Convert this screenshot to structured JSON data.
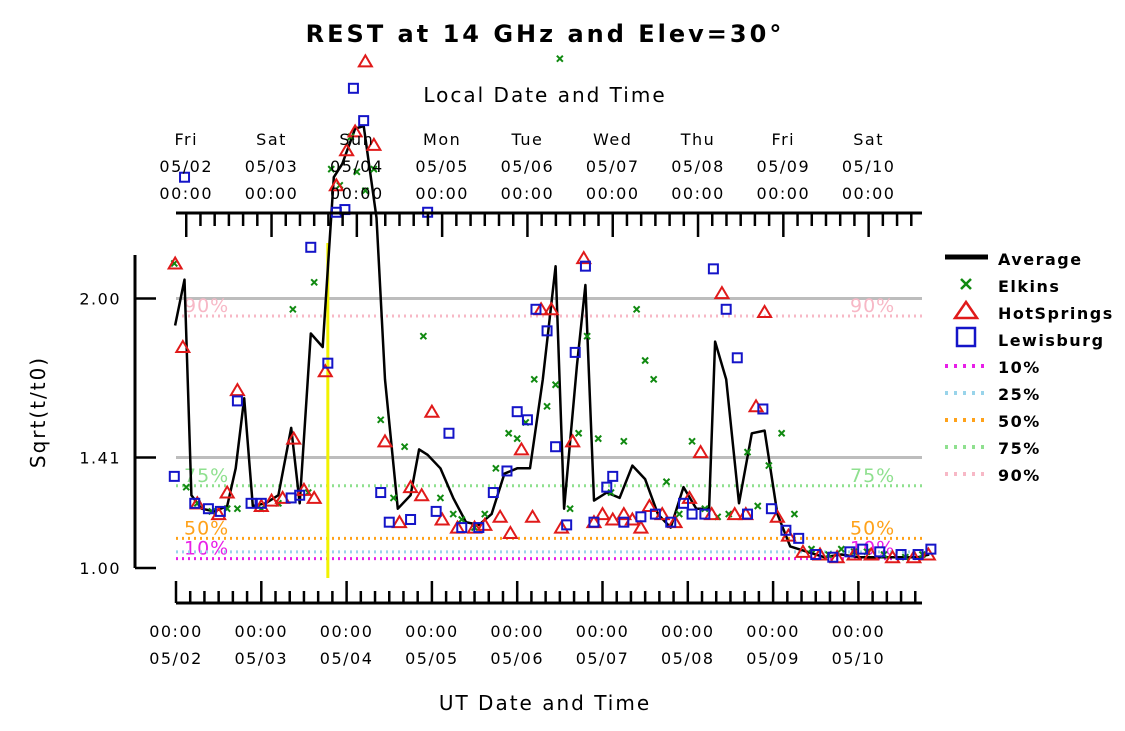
{
  "chart_data": {
    "type": "scatter",
    "title": "REST at 14 GHz and Elev=30°",
    "top_axis_title": "Local Date and Time",
    "xlabel": "UT Date and Time",
    "ylabel": "Sqrt(t/t0)",
    "xlim": [
      "05/01 23:10",
      "05/10 21:20"
    ],
    "ylim": [
      0.99,
      2.99
    ],
    "grid": "horizontal lines at 1.41 and 2.00",
    "legend_position": "right",
    "y_ticks": [
      {
        "value": 1.0,
        "label": "1.00"
      },
      {
        "value": 1.41,
        "label": "1.41"
      },
      {
        "value": 2.0,
        "label": "2.00"
      }
    ],
    "bottom_ticks": [
      {
        "day": 0,
        "time": "00:00",
        "date": "05/02"
      },
      {
        "day": 1,
        "time": "00:00",
        "date": "05/03"
      },
      {
        "day": 2,
        "time": "00:00",
        "date": "05/04"
      },
      {
        "day": 3,
        "time": "00:00",
        "date": "05/05"
      },
      {
        "day": 4,
        "time": "00:00",
        "date": "05/06"
      },
      {
        "day": 5,
        "time": "00:00",
        "date": "05/07"
      },
      {
        "day": 6,
        "time": "00:00",
        "date": "05/08"
      },
      {
        "day": 7,
        "time": "00:00",
        "date": "05/09"
      },
      {
        "day": 8,
        "time": "00:00",
        "date": "05/10"
      }
    ],
    "top_ticks": [
      {
        "day": 0.0,
        "weekday": "Fri",
        "date": "05/02",
        "time": "00:00"
      },
      {
        "day": 1.0,
        "weekday": "Sat",
        "date": "05/03",
        "time": "00:00"
      },
      {
        "day": 2.0,
        "weekday": "Sun",
        "date": "05/04",
        "time": "00:00"
      },
      {
        "day": 3.0,
        "weekday": "Mon",
        "date": "05/05",
        "time": "00:00"
      },
      {
        "day": 4.0,
        "weekday": "Tue",
        "date": "05/06",
        "time": "00:00"
      },
      {
        "day": 5.0,
        "weekday": "Wed",
        "date": "05/07",
        "time": "00:00"
      },
      {
        "day": 6.0,
        "weekday": "Thu",
        "date": "05/08",
        "time": "00:00"
      },
      {
        "day": 7.0,
        "weekday": "Fri",
        "date": "05/09",
        "time": "00:00"
      },
      {
        "day": 8.0,
        "weekday": "Sat",
        "date": "05/10",
        "time": "00:00"
      }
    ],
    "reference_marker": {
      "day": 1.78,
      "color": "#f2f200"
    },
    "percentiles": [
      {
        "name": "10%",
        "value": 1.035,
        "color": "#e81fe8",
        "label_left": "10%",
        "label_right": "10%"
      },
      {
        "name": "25%",
        "value": 1.06,
        "color": "#99d4ea",
        "label_left": "",
        "label_right": ""
      },
      {
        "name": "50%",
        "value": 1.11,
        "color": "#ffa21a",
        "label_left": "50%",
        "label_right": "50%"
      },
      {
        "name": "75%",
        "value": 1.305,
        "color": "#8fe08f",
        "label_left": "75%",
        "label_right": "75%"
      },
      {
        "name": "90%",
        "value": 1.935,
        "color": "#f7b8c6",
        "label_left": "90%",
        "label_right": "90%"
      }
    ],
    "legend": {
      "average": "Average",
      "elkins": "Elkins",
      "hotsprings": "HotSprings",
      "lewisburg": "Lewisburg"
    },
    "colors": {
      "average": "#000000",
      "elkins": "#118a11",
      "hotsprings": "#e01a1a",
      "lewisburg": "#1414c8",
      "grid": "#bdbdbd"
    },
    "series": [
      {
        "name": "Average",
        "kind": "line",
        "points": [
          [
            -0.01,
            1.9
          ],
          [
            0.1,
            2.07
          ],
          [
            0.18,
            1.27
          ],
          [
            0.3,
            1.22
          ],
          [
            0.45,
            1.21
          ],
          [
            0.6,
            1.23
          ],
          [
            0.7,
            1.37
          ],
          [
            0.8,
            1.63
          ],
          [
            0.9,
            1.23
          ],
          [
            1.05,
            1.24
          ],
          [
            1.2,
            1.27
          ],
          [
            1.35,
            1.52
          ],
          [
            1.45,
            1.24
          ],
          [
            1.58,
            1.87
          ],
          [
            1.72,
            1.82
          ],
          [
            1.85,
            2.45
          ],
          [
            1.95,
            2.5
          ],
          [
            2.1,
            2.63
          ],
          [
            2.2,
            2.64
          ],
          [
            2.35,
            2.3
          ],
          [
            2.45,
            1.7
          ],
          [
            2.6,
            1.22
          ],
          [
            2.75,
            1.27
          ],
          [
            2.85,
            1.44
          ],
          [
            2.95,
            1.42
          ],
          [
            3.1,
            1.37
          ],
          [
            3.25,
            1.26
          ],
          [
            3.4,
            1.17
          ],
          [
            3.55,
            1.16
          ],
          [
            3.7,
            1.2
          ],
          [
            3.85,
            1.35
          ],
          [
            4.0,
            1.37
          ],
          [
            4.15,
            1.37
          ],
          [
            4.3,
            1.7
          ],
          [
            4.45,
            2.12
          ],
          [
            4.55,
            1.22
          ],
          [
            4.7,
            1.75
          ],
          [
            4.8,
            2.05
          ],
          [
            4.9,
            1.25
          ],
          [
            5.05,
            1.28
          ],
          [
            5.2,
            1.26
          ],
          [
            5.35,
            1.38
          ],
          [
            5.5,
            1.33
          ],
          [
            5.65,
            1.2
          ],
          [
            5.8,
            1.15
          ],
          [
            5.95,
            1.3
          ],
          [
            6.1,
            1.22
          ],
          [
            6.25,
            1.22
          ],
          [
            6.32,
            1.84
          ],
          [
            6.45,
            1.7
          ],
          [
            6.6,
            1.24
          ],
          [
            6.75,
            1.5
          ],
          [
            6.9,
            1.51
          ],
          [
            7.05,
            1.2
          ],
          [
            7.2,
            1.08
          ],
          [
            7.4,
            1.06
          ],
          [
            7.6,
            1.04
          ],
          [
            7.8,
            1.05
          ],
          [
            8.0,
            1.04
          ],
          [
            8.2,
            1.04
          ],
          [
            8.45,
            1.04
          ],
          [
            8.7,
            1.04
          ],
          [
            8.83,
            1.05
          ]
        ]
      },
      {
        "name": "Elkins",
        "kind": "x-marker",
        "points": [
          [
            -0.02,
            2.13
          ],
          [
            0.12,
            1.3
          ],
          [
            0.25,
            1.24
          ],
          [
            0.42,
            1.21
          ],
          [
            0.6,
            1.22
          ],
          [
            0.72,
            1.22
          ],
          [
            1.0,
            1.22
          ],
          [
            1.2,
            1.24
          ],
          [
            1.37,
            1.96
          ],
          [
            1.55,
            1.28
          ],
          [
            1.62,
            2.06
          ],
          [
            1.82,
            2.48
          ],
          [
            1.92,
            2.42
          ],
          [
            2.05,
            2.6
          ],
          [
            2.12,
            2.47
          ],
          [
            2.22,
            2.4
          ],
          [
            2.32,
            2.48
          ],
          [
            2.4,
            1.55
          ],
          [
            2.55,
            1.26
          ],
          [
            2.68,
            1.45
          ],
          [
            2.9,
            1.86
          ],
          [
            3.1,
            1.26
          ],
          [
            3.25,
            1.2
          ],
          [
            3.35,
            1.18
          ],
          [
            3.5,
            1.15
          ],
          [
            3.62,
            1.2
          ],
          [
            3.75,
            1.37
          ],
          [
            3.9,
            1.5
          ],
          [
            4.0,
            1.48
          ],
          [
            4.1,
            1.54
          ],
          [
            4.2,
            1.7
          ],
          [
            4.35,
            1.6
          ],
          [
            4.45,
            1.68
          ],
          [
            4.5,
            2.89
          ],
          [
            4.62,
            1.22
          ],
          [
            4.72,
            1.5
          ],
          [
            4.82,
            1.86
          ],
          [
            4.95,
            1.48
          ],
          [
            5.1,
            1.28
          ],
          [
            5.25,
            1.47
          ],
          [
            5.4,
            1.96
          ],
          [
            5.5,
            1.77
          ],
          [
            5.6,
            1.7
          ],
          [
            5.75,
            1.32
          ],
          [
            5.9,
            1.2
          ],
          [
            6.05,
            1.47
          ],
          [
            6.2,
            1.22
          ],
          [
            6.35,
            1.19
          ],
          [
            6.48,
            1.2
          ],
          [
            6.7,
            1.43
          ],
          [
            6.82,
            1.23
          ],
          [
            6.95,
            1.38
          ],
          [
            7.1,
            1.5
          ],
          [
            7.25,
            1.2
          ],
          [
            7.45,
            1.07
          ],
          [
            7.65,
            1.05
          ],
          [
            7.8,
            1.07
          ],
          [
            7.95,
            1.06
          ],
          [
            8.1,
            1.06
          ],
          [
            8.3,
            1.05
          ],
          [
            8.55,
            1.04
          ],
          [
            8.75,
            1.05
          ]
        ]
      },
      {
        "name": "HotSprings",
        "kind": "triangle",
        "points": [
          [
            -0.01,
            2.13
          ],
          [
            0.08,
            1.82
          ],
          [
            0.25,
            1.24
          ],
          [
            0.5,
            1.2
          ],
          [
            0.6,
            1.28
          ],
          [
            0.72,
            1.66
          ],
          [
            1.0,
            1.23
          ],
          [
            1.12,
            1.25
          ],
          [
            1.25,
            1.26
          ],
          [
            1.38,
            1.48
          ],
          [
            1.5,
            1.29
          ],
          [
            1.62,
            1.26
          ],
          [
            1.75,
            1.73
          ],
          [
            1.88,
            2.42
          ],
          [
            2.0,
            2.55
          ],
          [
            2.1,
            2.62
          ],
          [
            2.22,
            2.88
          ],
          [
            2.32,
            2.57
          ],
          [
            2.45,
            1.47
          ],
          [
            2.62,
            1.17
          ],
          [
            2.75,
            1.3
          ],
          [
            2.88,
            1.27
          ],
          [
            3.0,
            1.58
          ],
          [
            3.12,
            1.18
          ],
          [
            3.3,
            1.15
          ],
          [
            3.5,
            1.15
          ],
          [
            3.62,
            1.16
          ],
          [
            3.8,
            1.19
          ],
          [
            3.92,
            1.13
          ],
          [
            4.05,
            1.44
          ],
          [
            4.18,
            1.19
          ],
          [
            4.28,
            1.96
          ],
          [
            4.4,
            1.96
          ],
          [
            4.52,
            1.15
          ],
          [
            4.65,
            1.47
          ],
          [
            4.78,
            2.15
          ],
          [
            4.9,
            1.17
          ],
          [
            5.0,
            1.2
          ],
          [
            5.12,
            1.18
          ],
          [
            5.25,
            1.2
          ],
          [
            5.35,
            1.18
          ],
          [
            5.45,
            1.15
          ],
          [
            5.55,
            1.23
          ],
          [
            5.7,
            1.2
          ],
          [
            5.85,
            1.17
          ],
          [
            6.02,
            1.26
          ],
          [
            6.15,
            1.43
          ],
          [
            6.28,
            1.2
          ],
          [
            6.4,
            2.02
          ],
          [
            6.55,
            1.2
          ],
          [
            6.68,
            1.2
          ],
          [
            6.8,
            1.6
          ],
          [
            6.9,
            1.95
          ],
          [
            7.05,
            1.19
          ],
          [
            7.18,
            1.12
          ],
          [
            7.35,
            1.06
          ],
          [
            7.55,
            1.05
          ],
          [
            7.75,
            1.04
          ],
          [
            7.95,
            1.05
          ],
          [
            8.15,
            1.05
          ],
          [
            8.4,
            1.04
          ],
          [
            8.65,
            1.04
          ],
          [
            8.82,
            1.05
          ]
        ]
      },
      {
        "name": "Lewisburg",
        "kind": "square",
        "points": [
          [
            -0.02,
            1.34
          ],
          [
            0.1,
            2.45
          ],
          [
            0.22,
            1.24
          ],
          [
            0.38,
            1.22
          ],
          [
            0.52,
            1.21
          ],
          [
            0.72,
            1.62
          ],
          [
            0.88,
            1.24
          ],
          [
            1.0,
            1.24
          ],
          [
            1.35,
            1.26
          ],
          [
            1.45,
            1.27
          ],
          [
            1.58,
            2.19
          ],
          [
            1.78,
            1.76
          ],
          [
            1.88,
            2.32
          ],
          [
            1.98,
            2.33
          ],
          [
            2.08,
            2.78
          ],
          [
            2.2,
            2.66
          ],
          [
            2.4,
            1.28
          ],
          [
            2.5,
            1.17
          ],
          [
            2.75,
            1.18
          ],
          [
            2.95,
            2.32
          ],
          [
            3.05,
            1.21
          ],
          [
            3.2,
            1.5
          ],
          [
            3.35,
            1.15
          ],
          [
            3.55,
            1.15
          ],
          [
            3.72,
            1.28
          ],
          [
            3.88,
            1.36
          ],
          [
            4.0,
            1.58
          ],
          [
            4.12,
            1.55
          ],
          [
            4.22,
            1.96
          ],
          [
            4.35,
            1.88
          ],
          [
            4.45,
            1.45
          ],
          [
            4.58,
            1.16
          ],
          [
            4.68,
            1.8
          ],
          [
            4.8,
            2.12
          ],
          [
            4.9,
            1.17
          ],
          [
            5.05,
            1.3
          ],
          [
            5.12,
            1.34
          ],
          [
            5.25,
            1.17
          ],
          [
            5.45,
            1.19
          ],
          [
            5.62,
            1.2
          ],
          [
            5.8,
            1.17
          ],
          [
            5.95,
            1.24
          ],
          [
            6.05,
            1.2
          ],
          [
            6.2,
            1.2
          ],
          [
            6.3,
            2.11
          ],
          [
            6.45,
            1.96
          ],
          [
            6.58,
            1.78
          ],
          [
            6.7,
            1.2
          ],
          [
            6.88,
            1.59
          ],
          [
            6.98,
            1.22
          ],
          [
            7.15,
            1.14
          ],
          [
            7.3,
            1.11
          ],
          [
            7.5,
            1.05
          ],
          [
            7.7,
            1.04
          ],
          [
            7.9,
            1.06
          ],
          [
            8.05,
            1.07
          ],
          [
            8.25,
            1.06
          ],
          [
            8.5,
            1.05
          ],
          [
            8.7,
            1.05
          ],
          [
            8.85,
            1.07
          ]
        ]
      }
    ]
  }
}
